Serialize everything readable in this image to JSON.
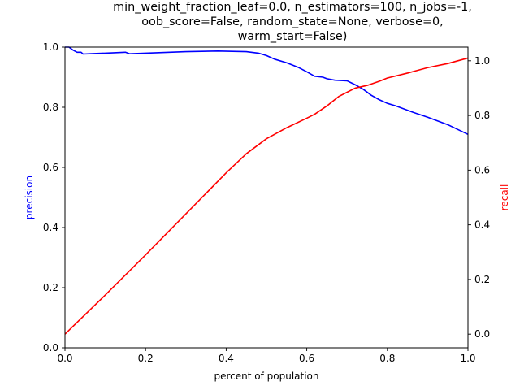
{
  "chart_data": {
    "type": "line",
    "title_lines": [
      "min_weight_fraction_leaf=0.0, n_estimators=100, n_jobs=-1,",
      "oob_score=False, random_state=None, verbose=0,",
      "warm_start=False)"
    ],
    "xlabel": "percent of population",
    "ylabel_left": "precision",
    "ylabel_right": "recall",
    "xlim": [
      0.0,
      1.0
    ],
    "ylim_left": [
      0.0,
      1.0
    ],
    "ylim_right": [
      -0.05,
      1.05
    ],
    "x_ticks": [
      "0.0",
      "0.2",
      "0.4",
      "0.6",
      "0.8",
      "1.0"
    ],
    "y_left_ticks": [
      "0.0",
      "0.2",
      "0.4",
      "0.6",
      "0.8",
      "1.0"
    ],
    "y_right_ticks": [
      "0.0",
      "0.2",
      "0.4",
      "0.6",
      "0.8",
      "1.0"
    ],
    "grid": false,
    "series": [
      {
        "name": "precision",
        "axis": "left",
        "color": "#0000ff",
        "points": [
          [
            0.0,
            1.0
          ],
          [
            0.01,
            1.0
          ],
          [
            0.02,
            0.99
          ],
          [
            0.03,
            0.983
          ],
          [
            0.04,
            0.983
          ],
          [
            0.045,
            0.977
          ],
          [
            0.06,
            0.978
          ],
          [
            0.1,
            0.98
          ],
          [
            0.15,
            0.983
          ],
          [
            0.16,
            0.978
          ],
          [
            0.2,
            0.98
          ],
          [
            0.3,
            0.985
          ],
          [
            0.38,
            0.987
          ],
          [
            0.45,
            0.985
          ],
          [
            0.48,
            0.98
          ],
          [
            0.5,
            0.972
          ],
          [
            0.52,
            0.96
          ],
          [
            0.55,
            0.948
          ],
          [
            0.58,
            0.932
          ],
          [
            0.6,
            0.918
          ],
          [
            0.62,
            0.903
          ],
          [
            0.64,
            0.9
          ],
          [
            0.65,
            0.895
          ],
          [
            0.67,
            0.89
          ],
          [
            0.7,
            0.888
          ],
          [
            0.72,
            0.875
          ],
          [
            0.74,
            0.86
          ],
          [
            0.76,
            0.84
          ],
          [
            0.78,
            0.825
          ],
          [
            0.8,
            0.813
          ],
          [
            0.82,
            0.805
          ],
          [
            0.86,
            0.785
          ],
          [
            0.9,
            0.767
          ],
          [
            0.95,
            0.742
          ],
          [
            1.0,
            0.71
          ]
        ]
      },
      {
        "name": "recall",
        "axis": "right",
        "color": "#ff0000",
        "points": [
          [
            0.0,
            0.0
          ],
          [
            0.1,
            0.143
          ],
          [
            0.2,
            0.29
          ],
          [
            0.3,
            0.44
          ],
          [
            0.4,
            0.59
          ],
          [
            0.45,
            0.66
          ],
          [
            0.5,
            0.715
          ],
          [
            0.55,
            0.755
          ],
          [
            0.6,
            0.79
          ],
          [
            0.62,
            0.805
          ],
          [
            0.65,
            0.835
          ],
          [
            0.68,
            0.87
          ],
          [
            0.7,
            0.885
          ],
          [
            0.72,
            0.9
          ],
          [
            0.75,
            0.91
          ],
          [
            0.78,
            0.925
          ],
          [
            0.8,
            0.937
          ],
          [
            0.85,
            0.955
          ],
          [
            0.9,
            0.975
          ],
          [
            0.95,
            0.99
          ],
          [
            1.0,
            1.01
          ]
        ]
      }
    ]
  }
}
